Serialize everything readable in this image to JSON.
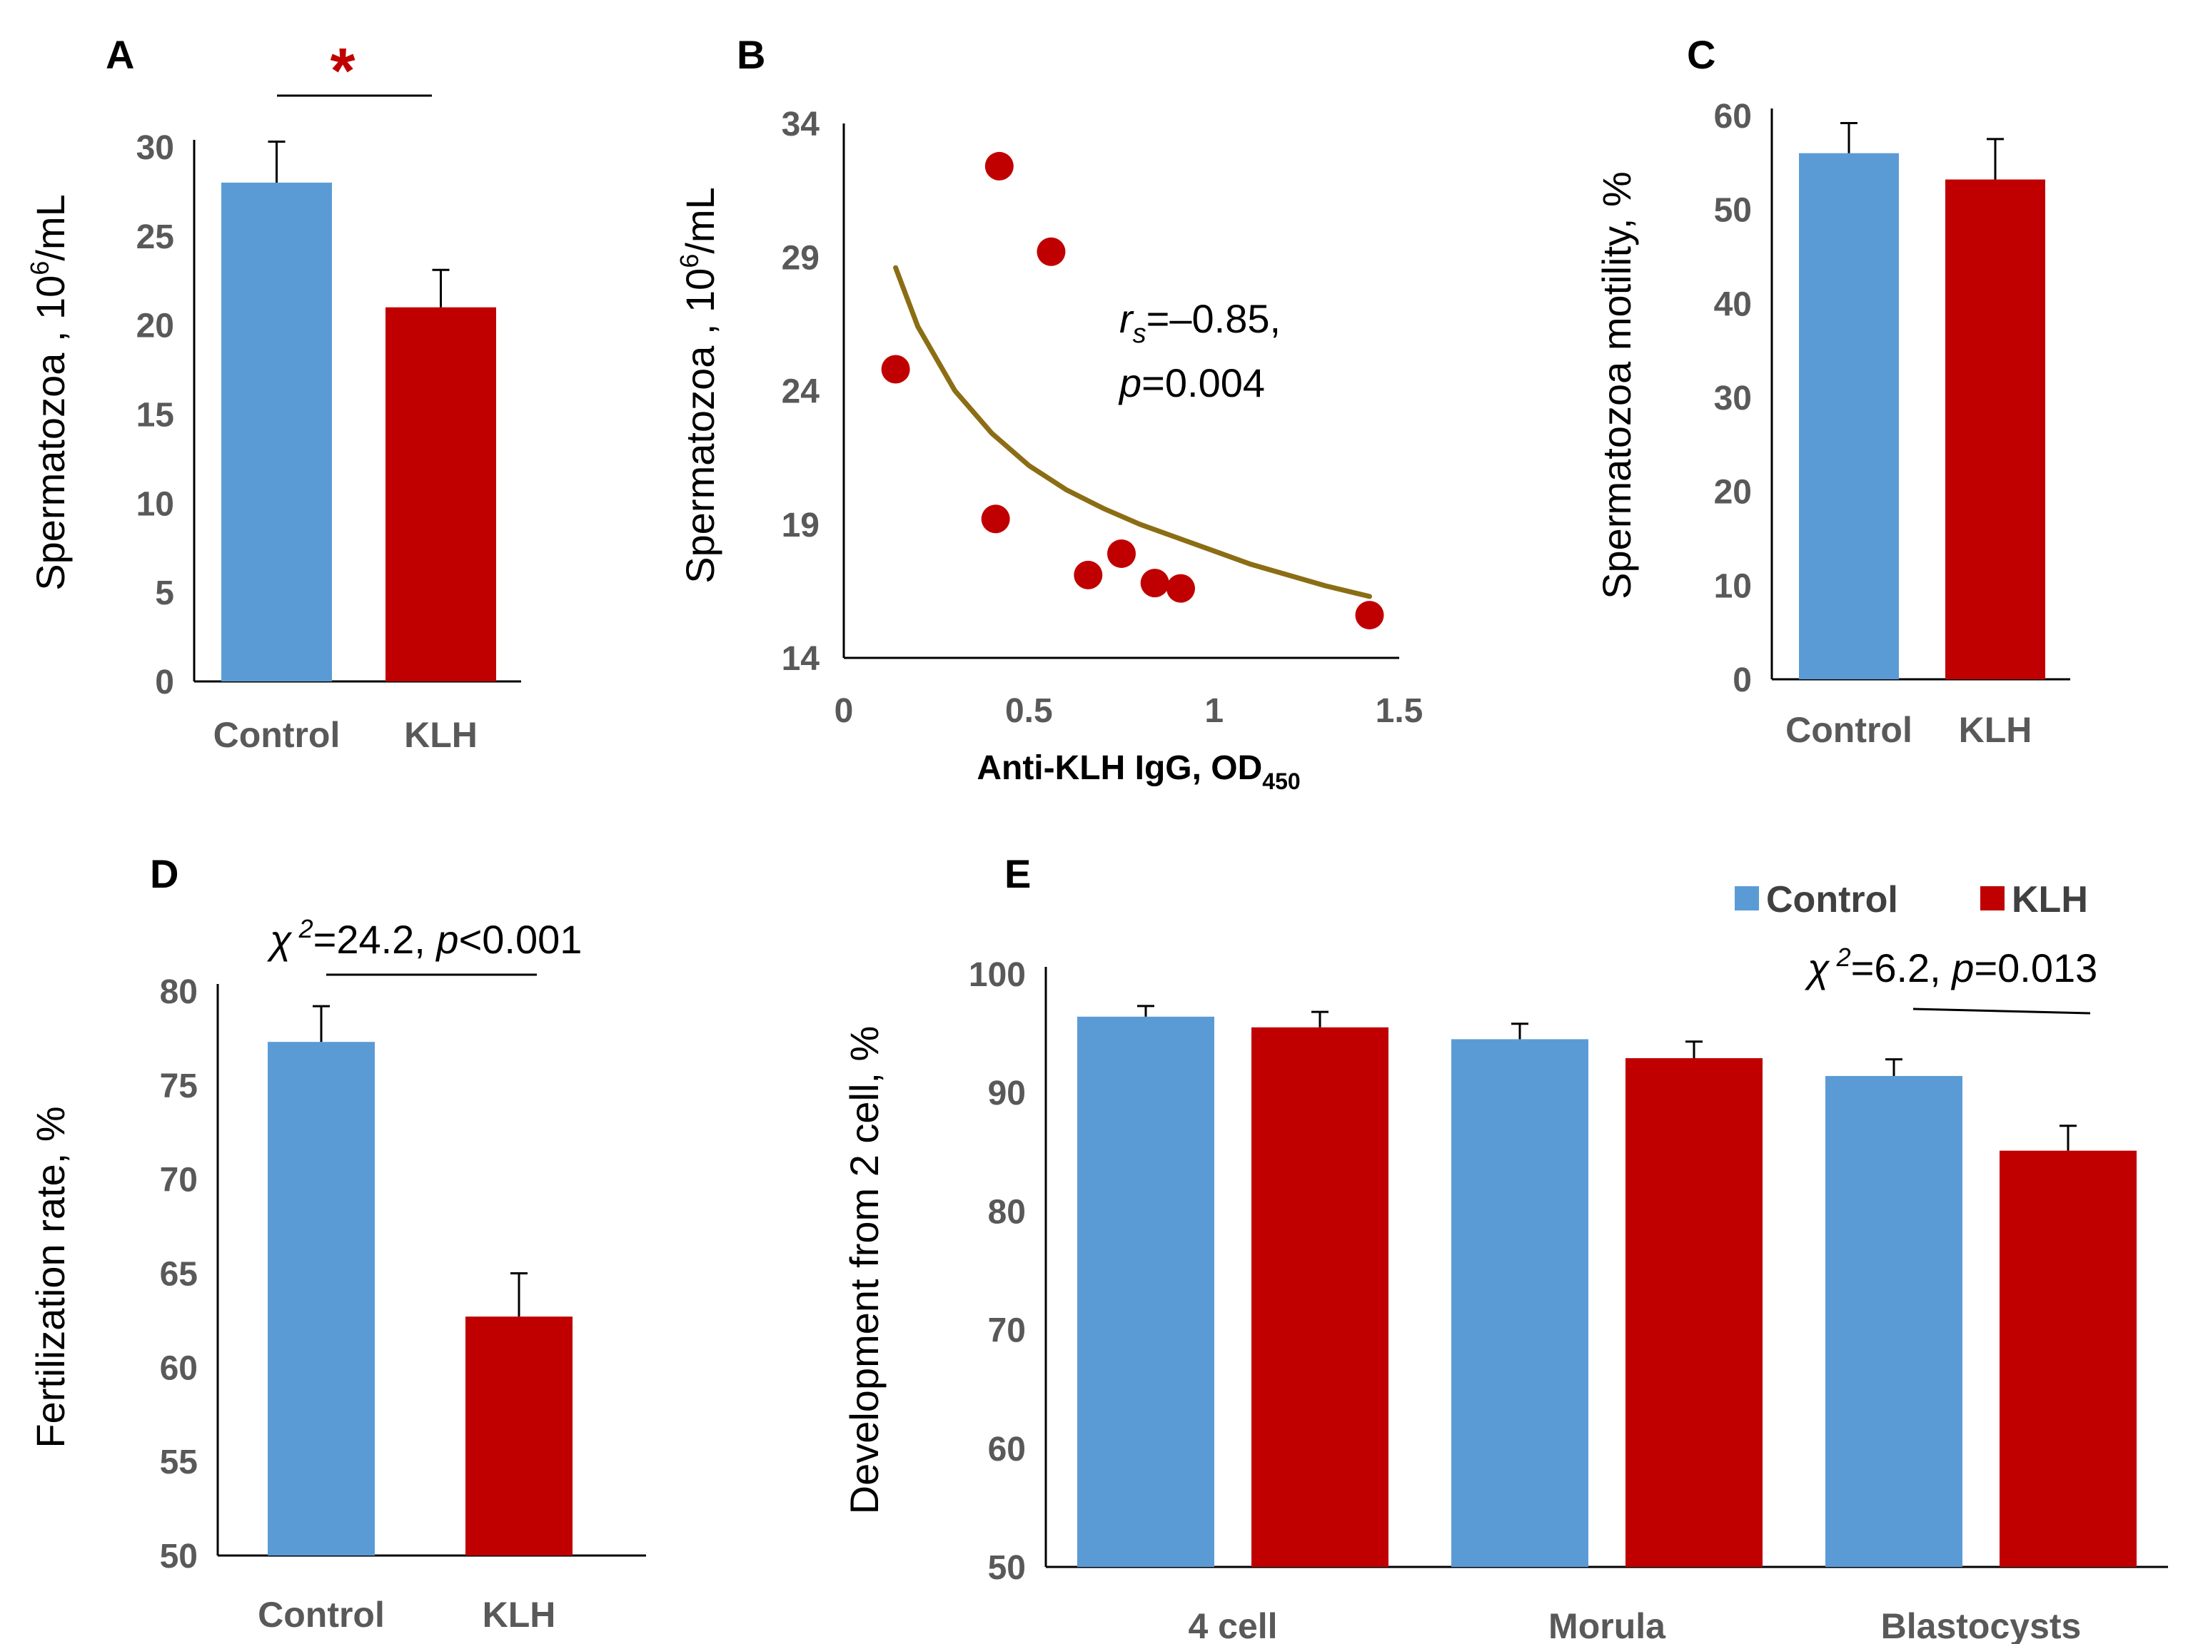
{
  "colors": {
    "control": "#5b9bd5",
    "klh": "#c00000",
    "trend": "#8b6d14",
    "star": "#c00000"
  },
  "chart_data": [
    {
      "panel": "A",
      "type": "bar",
      "categories": [
        "Control",
        "KLH"
      ],
      "values": [
        28,
        21
      ],
      "errors": [
        2.3,
        2.1
      ],
      "ylabel_main": "Spermatozoa , 10",
      "ylabel_sup": "6",
      "ylabel_end": "/mL",
      "ylim": [
        0,
        30
      ],
      "yticks": [
        0,
        5,
        10,
        15,
        20,
        25,
        30
      ],
      "significance": "*"
    },
    {
      "panel": "B",
      "type": "scatter",
      "x": [
        0.14,
        0.42,
        0.56,
        0.41,
        0.66,
        0.75,
        0.84,
        0.91,
        1.42
      ],
      "y": [
        24.8,
        32.4,
        29.2,
        19.2,
        17.1,
        17.9,
        16.8,
        16.6,
        15.6
      ],
      "trend": [
        [
          0.14,
          28.6
        ],
        [
          0.2,
          26.4
        ],
        [
          0.3,
          24.0
        ],
        [
          0.4,
          22.4
        ],
        [
          0.5,
          21.2
        ],
        [
          0.6,
          20.3
        ],
        [
          0.7,
          19.6
        ],
        [
          0.8,
          19.0
        ],
        [
          0.9,
          18.5
        ],
        [
          1.0,
          18.0
        ],
        [
          1.1,
          17.5
        ],
        [
          1.2,
          17.1
        ],
        [
          1.3,
          16.7
        ],
        [
          1.42,
          16.3
        ]
      ],
      "xlim": [
        0,
        1.5
      ],
      "ylim": [
        14,
        34
      ],
      "xticks": [
        0,
        0.5,
        1,
        1.5
      ],
      "xticklabels": [
        "0",
        "0.5",
        "1",
        "1.5"
      ],
      "yticks": [
        14,
        19,
        24,
        29,
        34
      ],
      "xlabel_main": "Anti-KLH IgG, OD",
      "xlabel_sub": "450",
      "ylabel_main": "Spermatozoa , 10",
      "ylabel_sup": "6",
      "ylabel_end": "/mL",
      "annot_r": "r",
      "annot_r_sub": "s",
      "annot_r_val": "=–0.85,",
      "annot_p": "p",
      "annot_p_val": "=0.004"
    },
    {
      "panel": "C",
      "type": "bar",
      "categories": [
        "Control",
        "KLH"
      ],
      "values": [
        56,
        53.2
      ],
      "errors": [
        3.2,
        4.3
      ],
      "ylabel": "Spermatozoa  motility, %",
      "ylim": [
        0,
        60
      ],
      "yticks": [
        0,
        10,
        20,
        30,
        40,
        50,
        60
      ]
    },
    {
      "panel": "D",
      "type": "bar",
      "categories": [
        "Control",
        "KLH"
      ],
      "values": [
        77.3,
        62.7
      ],
      "errors": [
        1.9,
        2.3
      ],
      "ylabel": "Fertilization rate, %",
      "ylim": [
        50,
        80
      ],
      "yticks": [
        50,
        55,
        60,
        65,
        70,
        75,
        80
      ],
      "stat_chi": "χ",
      "stat_sup": "2",
      "stat_mid": "=24.2, ",
      "stat_p": "p",
      "stat_end": "<0.001"
    },
    {
      "panel": "E",
      "type": "bar",
      "categories": [
        "4 cell",
        "Morula",
        "Blastocysts"
      ],
      "series": [
        {
          "name": "Control",
          "values": [
            96.4,
            94.5,
            91.4
          ],
          "errors": [
            0.9,
            1.3,
            1.4
          ]
        },
        {
          "name": "KLH",
          "values": [
            95.5,
            92.9,
            85.1
          ],
          "errors": [
            1.3,
            1.4,
            2.1
          ]
        }
      ],
      "ylabel": "Development from 2 cell, %",
      "ylim": [
        50,
        100
      ],
      "yticks": [
        50,
        60,
        70,
        80,
        90,
        100
      ],
      "stat_chi": "χ",
      "stat_sup": "2",
      "stat_mid": "=6.2, ",
      "stat_p": "p",
      "stat_end": "=0.013"
    }
  ]
}
